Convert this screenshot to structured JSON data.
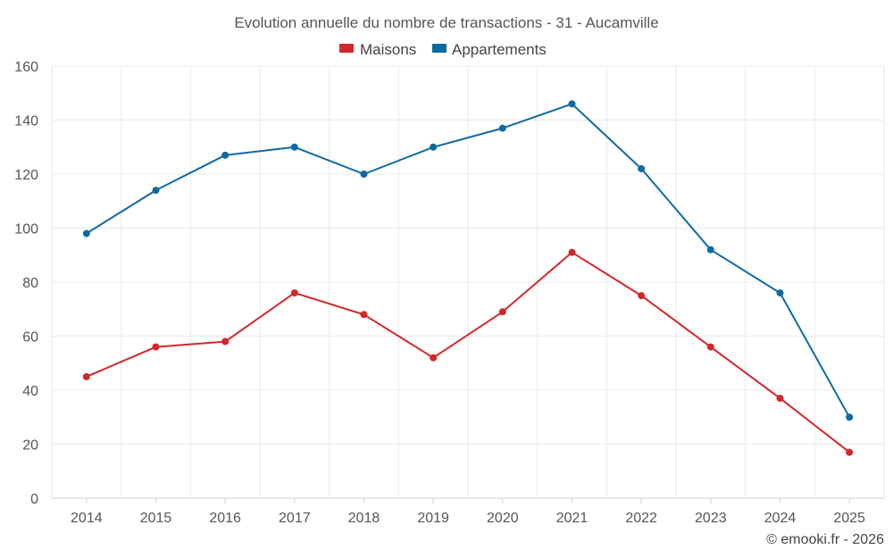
{
  "chart_data": {
    "type": "line",
    "title": "Evolution annuelle du nombre de transactions - 31 - Aucamville",
    "categories": [
      "2014",
      "2015",
      "2016",
      "2017",
      "2018",
      "2019",
      "2020",
      "2021",
      "2022",
      "2023",
      "2024",
      "2025"
    ],
    "series": [
      {
        "name": "Maisons",
        "color": "#d3272a",
        "values": [
          45,
          56,
          58,
          76,
          68,
          52,
          69,
          91,
          75,
          56,
          37,
          17
        ]
      },
      {
        "name": "Appartements",
        "color": "#0f6aa1",
        "values": [
          98,
          114,
          127,
          130,
          120,
          130,
          137,
          146,
          122,
          92,
          76,
          30
        ]
      }
    ],
    "ylim": [
      0,
      160
    ],
    "yticks": [
      0,
      20,
      40,
      60,
      80,
      100,
      120,
      140,
      160
    ],
    "xlabel": "",
    "ylabel": "",
    "grid": true,
    "legend_position": "top-center"
  },
  "credit": "© emooki.fr - 2026"
}
